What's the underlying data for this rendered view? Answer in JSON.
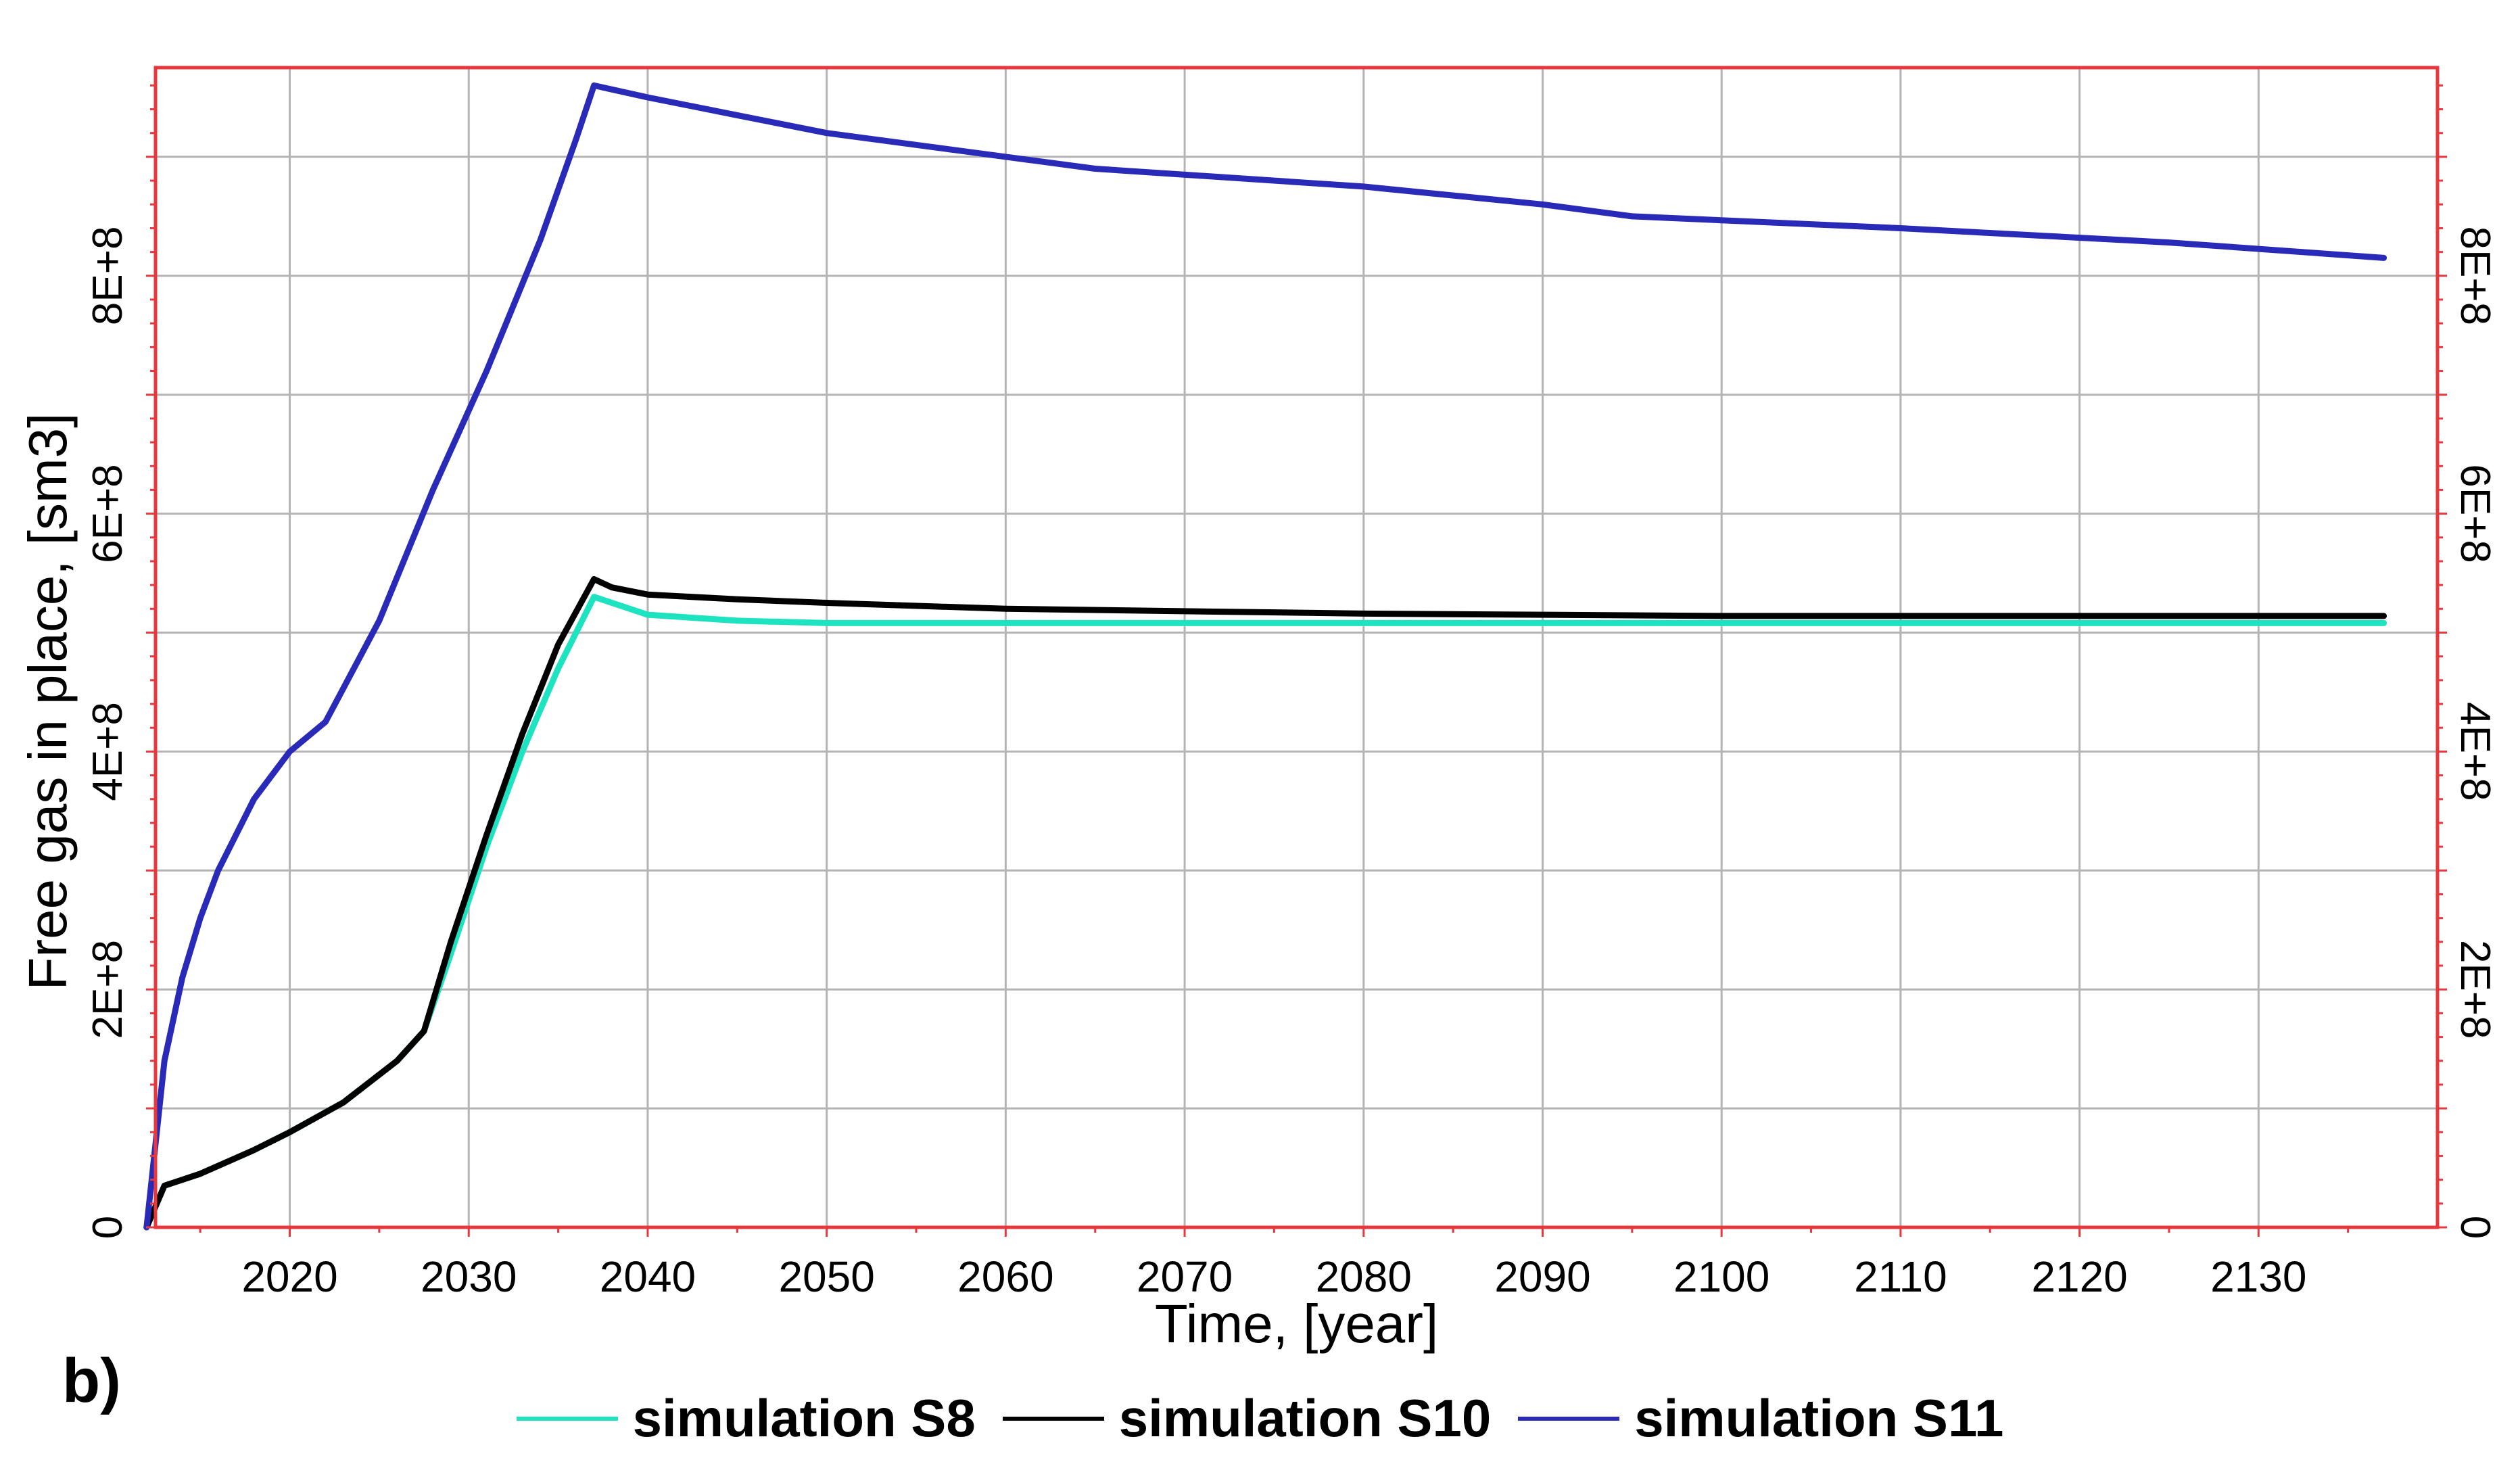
{
  "panel_label": "b)",
  "chart_data": {
    "type": "line",
    "title": "",
    "xlabel": "Time, [year]",
    "ylabel": "Free gas in place, [sm3]",
    "xlim": [
      2012.5,
      2140
    ],
    "ylim": [
      0,
      975000000
    ],
    "x_ticks": [
      2020,
      2030,
      2040,
      2050,
      2060,
      2070,
      2080,
      2090,
      2100,
      2110,
      2120,
      2130
    ],
    "y_ticks": [
      0,
      200000000,
      400000000,
      600000000,
      800000000
    ],
    "y_tick_labels": [
      "0",
      "2E+8",
      "4E+8",
      "6E+8",
      "8E+8"
    ],
    "grid": true,
    "legend_position": "bottom-center",
    "frame_color": "#e8383d",
    "grid_color": "#b4b4b4",
    "series": [
      {
        "name": "simulation S8",
        "color": "#1ee3c0",
        "x": [
          2012,
          2013,
          2015,
          2018,
          2020,
          2023,
          2026,
          2027.5,
          2029,
          2031,
          2033,
          2035,
          2037,
          2038,
          2040,
          2045,
          2050,
          2060,
          2080,
          2100,
          2137
        ],
        "y": [
          0,
          35000000,
          45000000,
          65000000,
          80000000,
          105000000,
          140000000,
          165000000,
          230000000,
          320000000,
          400000000,
          470000000,
          530000000,
          525000000,
          515000000,
          510000000,
          508000000,
          508000000,
          508000000,
          508000000,
          508000000
        ]
      },
      {
        "name": "simulation S10",
        "color": "#000000",
        "x": [
          2012,
          2013,
          2015,
          2018,
          2020,
          2023,
          2026,
          2027.5,
          2029,
          2031,
          2033,
          2035,
          2037,
          2038,
          2040,
          2045,
          2050,
          2060,
          2070,
          2080,
          2090,
          2100,
          2137
        ],
        "y": [
          0,
          35000000,
          45000000,
          65000000,
          80000000,
          105000000,
          140000000,
          165000000,
          240000000,
          330000000,
          415000000,
          490000000,
          545000000,
          538000000,
          532000000,
          528000000,
          525000000,
          520000000,
          518000000,
          516000000,
          515000000,
          514000000,
          514000000
        ]
      },
      {
        "name": "simulation S11",
        "color": "#2a2ab8",
        "x": [
          2012,
          2013,
          2014,
          2015,
          2016,
          2018,
          2020,
          2022,
          2025,
          2028,
          2031,
          2034,
          2036,
          2037,
          2040,
          2045,
          2050,
          2060,
          2065,
          2080,
          2090,
          2095,
          2110,
          2125,
          2137
        ],
        "y": [
          0,
          140000000,
          210000000,
          260000000,
          300000000,
          360000000,
          400000000,
          425000000,
          510000000,
          620000000,
          720000000,
          830000000,
          915000000,
          960000000,
          950000000,
          935000000,
          920000000,
          900000000,
          890000000,
          875000000,
          860000000,
          850000000,
          840000000,
          828000000,
          815000000
        ]
      }
    ]
  }
}
